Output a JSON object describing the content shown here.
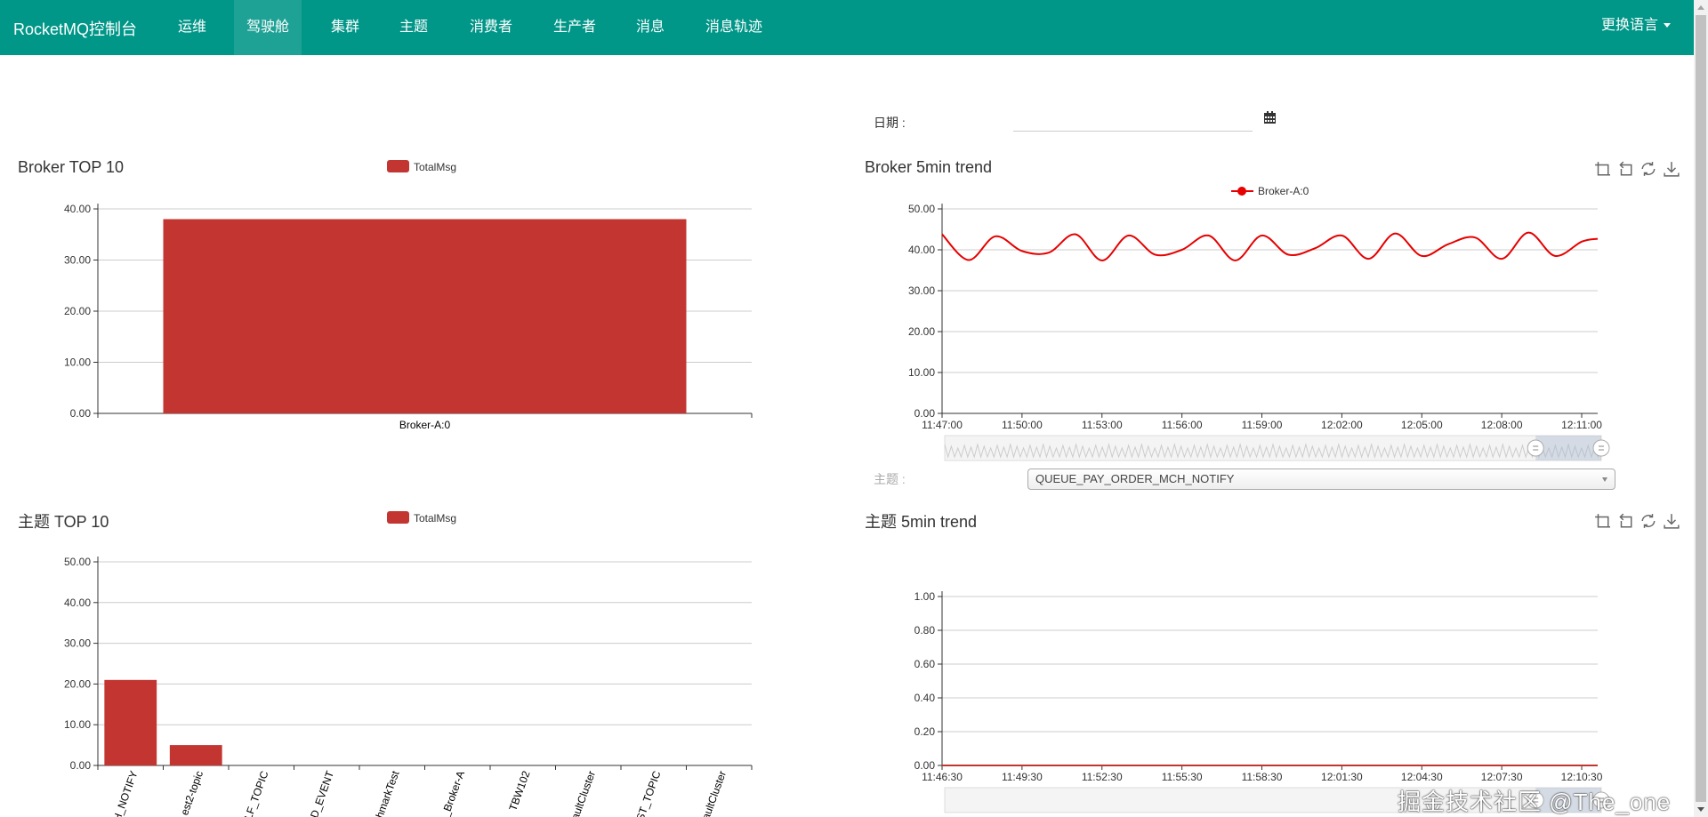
{
  "nav": {
    "brand": "RocketMQ控制台",
    "items": [
      {
        "label": "运维",
        "active": false
      },
      {
        "label": "驾驶舱",
        "active": true
      },
      {
        "label": "集群",
        "active": false
      },
      {
        "label": "主题",
        "active": false
      },
      {
        "label": "消费者",
        "active": false
      },
      {
        "label": "生产者",
        "active": false
      },
      {
        "label": "消息",
        "active": false
      },
      {
        "label": "消息轨迹",
        "active": false
      }
    ],
    "language": "更换语言"
  },
  "filters": {
    "date_label": "日期 :",
    "date_value": "",
    "topic_label": "主题 :",
    "topic_value": "QUEUE_PAY_ORDER_MCH_NOTIFY"
  },
  "colors": {
    "nav": "#009688",
    "bar": "#c23531",
    "line": "#e60000"
  },
  "toolbox_icons": [
    "zoom-icon",
    "zoom-reset-icon",
    "restore-icon",
    "save-image-icon"
  ],
  "watermark": "掘金技术社区 @The_one",
  "chart_data": [
    {
      "id": "broker-top10",
      "type": "bar",
      "title": "Broker TOP 10",
      "legend": [
        "TotalMsg"
      ],
      "categories": [
        "Broker-A:0"
      ],
      "values": [
        38
      ],
      "yticks": [
        "0.00",
        "10.00",
        "20.00",
        "30.00",
        "40.00"
      ],
      "ylim": [
        0,
        40
      ]
    },
    {
      "id": "topic-top10",
      "type": "bar",
      "title": "主题 TOP 10",
      "legend": [
        "TotalMsg"
      ],
      "categories": [
        "CH_NOTIFY",
        "est2-topic",
        "ALF_TOPIC",
        "ED_EVENT",
        "hmarkTest",
        "_Broker-A",
        "TBW102",
        "aultCluster",
        "EST_TOPIC",
        "aultCluster"
      ],
      "values": [
        21,
        5,
        0,
        0,
        0,
        0,
        0,
        0,
        0,
        0
      ],
      "yticks": [
        "0.00",
        "10.00",
        "20.00",
        "30.00",
        "40.00",
        "50.00"
      ],
      "ylim": [
        0,
        50
      ]
    },
    {
      "id": "broker-trend",
      "type": "line",
      "title": "Broker 5min trend",
      "legend": [
        "Broker-A:0"
      ],
      "xlim": [
        "11:47:00",
        "12:11:36"
      ],
      "xticks": [
        "11:47:00",
        "11:50:00",
        "11:53:00",
        "11:56:00",
        "11:59:00",
        "12:02:00",
        "12:05:00",
        "12:08:00",
        "12:11:00"
      ],
      "yticks": [
        "0.00",
        "10.00",
        "20.00",
        "30.00",
        "40.00",
        "50.00"
      ],
      "ylim": [
        0,
        50
      ],
      "datazoom": {
        "start": 90,
        "end": 100
      },
      "series": [
        {
          "name": "Broker-A:0",
          "x": [
            "11:47:00",
            "11:48:00",
            "11:49:00",
            "11:50:00",
            "11:51:00",
            "11:52:00",
            "11:53:00",
            "11:54:00",
            "11:55:00",
            "11:56:00",
            "11:57:00",
            "11:58:00",
            "11:59:00",
            "12:00:00",
            "12:01:00",
            "12:02:00",
            "12:03:00",
            "12:04:00",
            "12:05:00",
            "12:06:00",
            "12:07:00",
            "12:08:00",
            "12:09:00",
            "12:10:00",
            "12:11:00",
            "12:11:36"
          ],
          "values": [
            43.8,
            37.5,
            43.3,
            39.7,
            39.3,
            43.8,
            37.4,
            43.5,
            38.8,
            40.0,
            43.5,
            37.4,
            43.5,
            38.8,
            40.4,
            43.5,
            37.8,
            44.0,
            38.5,
            41.4,
            43.0,
            37.8,
            44.2,
            38.5,
            42.0,
            42.7
          ]
        }
      ]
    },
    {
      "id": "topic-trend",
      "type": "line",
      "title": "主题 5min trend",
      "legend": [],
      "xlim": [
        "11:46:30",
        "12:11:06"
      ],
      "xticks": [
        "11:46:30",
        "11:49:30",
        "11:52:30",
        "11:55:30",
        "11:58:30",
        "12:01:30",
        "12:04:30",
        "12:07:30",
        "12:10:30"
      ],
      "yticks": [
        "0.00",
        "0.20",
        "0.40",
        "0.60",
        "0.80",
        "1.00"
      ],
      "ylim": [
        0,
        1
      ],
      "datazoom": {
        "start": 90,
        "end": 100
      },
      "series": [
        {
          "x": [
            "11:46:30",
            "11:52:30",
            "11:58:30",
            "12:04:30",
            "12:11:06"
          ],
          "values": [
            0,
            0,
            0,
            0,
            0
          ]
        }
      ]
    }
  ]
}
